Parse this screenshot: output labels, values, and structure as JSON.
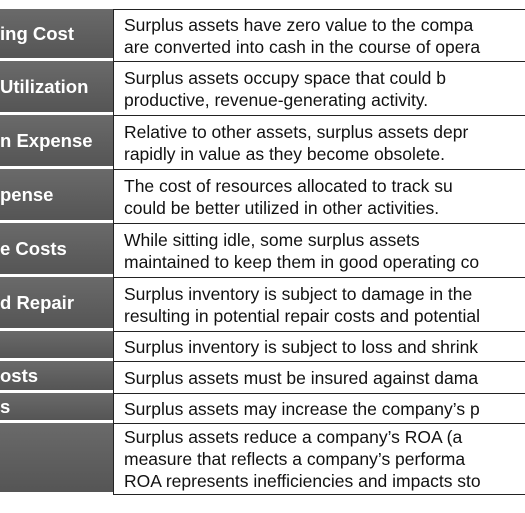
{
  "rows": [
    {
      "label": "ing Cost",
      "lines": [
        "Surplus assets have zero value to the compa",
        "are converted into cash in the course of opera"
      ]
    },
    {
      "label": " Utilization",
      "lines": [
        "Surplus assets occupy space that could b",
        "productive, revenue-generating activity."
      ]
    },
    {
      "label": "n Expense",
      "lines": [
        "Relative to other assets, surplus assets depr",
        "rapidly in value as they become obsolete."
      ]
    },
    {
      "label": "pense",
      "lines": [
        "The cost of resources allocated to track su",
        "could be better utilized in other activities."
      ]
    },
    {
      "label": "e Costs",
      "lines": [
        "While sitting idle, some surplus assets",
        "maintained to keep them in good operating co"
      ]
    },
    {
      "label": "d Repair",
      "lines": [
        "Surplus inventory is subject to damage in the",
        "resulting in potential repair costs and potential"
      ]
    },
    {
      "label": "",
      "lines": [
        "Surplus inventory is subject to loss and shrink"
      ]
    },
    {
      "label": "osts",
      "lines": [
        "Surplus assets must be insured against dama"
      ]
    },
    {
      "label": "s",
      "lines": [
        "Surplus assets may increase the company’s p"
      ]
    },
    {
      "label": "",
      "lines": [
        "Surplus assets reduce a company’s ROA (a ",
        "measure that reflects a company’s performa",
        "ROA represents inefficiencies and impacts sto"
      ]
    }
  ]
}
